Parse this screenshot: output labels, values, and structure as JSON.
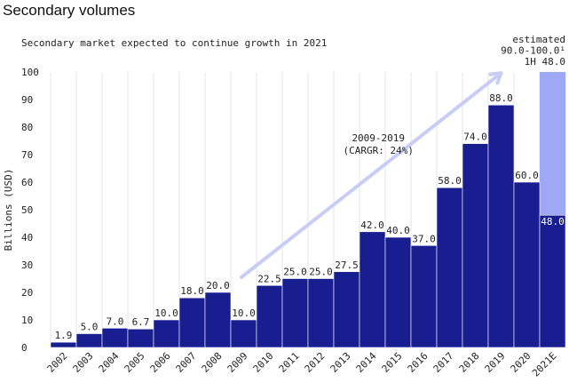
{
  "chart_data": {
    "type": "bar",
    "title": "Secondary volumes",
    "subtitle": "Secondary market expected to continue growth in 2021",
    "ylabel": "Billions (USD)",
    "xlabel": "",
    "ylim": [
      0,
      100
    ],
    "yticks": [
      "0",
      "10",
      "20",
      "30",
      "40",
      "50",
      "60",
      "70",
      "80",
      "90",
      "100"
    ],
    "grid": "vertical lines between categories",
    "categories": [
      "2002",
      "2003",
      "2004",
      "2005",
      "2006",
      "2007",
      "2008",
      "2009",
      "2010",
      "2011",
      "2012",
      "2013",
      "2014",
      "2015",
      "2016",
      "2017",
      "2018",
      "2019",
      "2020",
      "2021E"
    ],
    "values": [
      1.9,
      5.0,
      7.0,
      6.7,
      10.0,
      18.0,
      20.0,
      10.0,
      22.5,
      25.0,
      25.0,
      27.5,
      42.0,
      40.0,
      37.0,
      58.0,
      74.0,
      88.0,
      60.0,
      48.0
    ],
    "value_labels": [
      "1.9",
      "5.0",
      "7.0",
      "6.7",
      "10.0",
      "18.0",
      "20.0",
      "10.0",
      "22.5",
      "25.0",
      "25.0",
      "27.5",
      "42.0",
      "40.0",
      "37.0",
      "58.0",
      "74.0",
      "88.0",
      "60.0",
      "48.0"
    ],
    "estimate_range": [
      48.0,
      100.0
    ],
    "estimate_note": [
      "estimated",
      "90.0-100.0¹",
      "1H 48.0"
    ],
    "trend": {
      "label": "2009-2019",
      "sublabel": "(CARGR: 24%)",
      "from": "2009",
      "to": "2019"
    },
    "colors": {
      "bar": "#181d8f",
      "estimate": "#9ea8f5",
      "trend_arrow": "#c7cdf5",
      "grid": "#e4e4e4"
    }
  }
}
